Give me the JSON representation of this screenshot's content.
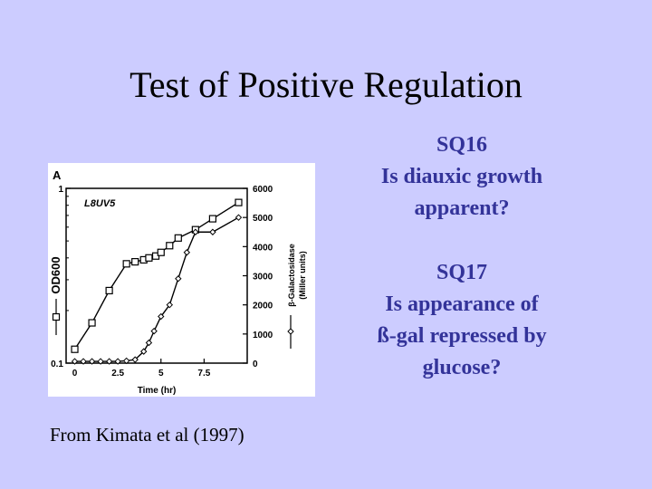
{
  "title": "Test of Positive Regulation",
  "questions": [
    {
      "lines": [
        "SQ16",
        "Is diauxic growth",
        "apparent?"
      ]
    },
    {
      "lines": [
        "SQ17",
        "Is appearance of",
        "ß-gal repressed by",
        "glucose?"
      ]
    }
  ],
  "citation": "From Kimata et al (1997)",
  "colors": {
    "background": "#ccccff",
    "question_text": "#333399"
  },
  "chart_data": {
    "type": "line",
    "panel_label": "A",
    "strain_label": "L8UV5",
    "xlabel": "Time (hr)",
    "x_ticks": [
      "0",
      "2.5",
      "5",
      "7.5"
    ],
    "xlim": [
      -0.5,
      10
    ],
    "y_left": {
      "label": "OD600",
      "scale": "log",
      "range": [
        0.1,
        1
      ],
      "tick_labels": [
        {
          "value": 1,
          "text": "1"
        },
        {
          "value": 0.1,
          "text": "0.1"
        }
      ]
    },
    "y_right": {
      "label": "β-Galactosidase",
      "sublabel": "(Miller units)",
      "range": [
        0,
        6000
      ],
      "ticks": [
        "0",
        "1000",
        "2000",
        "3000",
        "4000",
        "5000",
        "6000"
      ]
    },
    "series": [
      {
        "marker": "square",
        "axis": "left",
        "x": [
          0,
          1,
          2,
          3,
          3.5,
          4,
          4.3,
          4.7,
          5,
          5.5,
          6,
          7,
          8,
          9.5
        ],
        "y": [
          0.12,
          0.17,
          0.26,
          0.37,
          0.38,
          0.39,
          0.4,
          0.41,
          0.43,
          0.47,
          0.52,
          0.58,
          0.67,
          0.83
        ]
      },
      {
        "marker": "diamond",
        "axis": "right",
        "x": [
          0,
          0.5,
          1,
          1.5,
          2,
          2.5,
          3,
          3.5,
          4,
          4.3,
          4.6,
          5,
          5.5,
          6,
          6.5,
          7,
          8,
          9.5
        ],
        "y": [
          60,
          60,
          60,
          60,
          60,
          60,
          80,
          120,
          400,
          700,
          1100,
          1600,
          2000,
          2900,
          3800,
          4500,
          4500,
          5000
        ]
      }
    ],
    "legend_markers": [
      "square",
      "diamond"
    ]
  }
}
